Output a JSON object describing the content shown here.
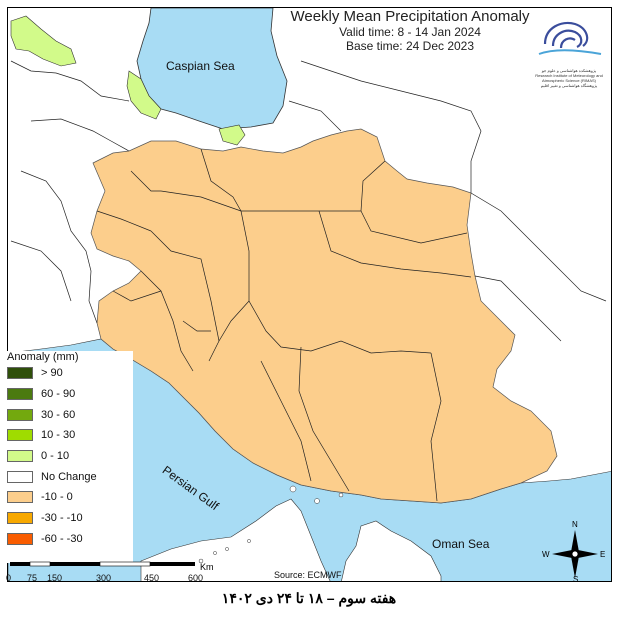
{
  "title": "Weekly Mean Precipitation Anomaly",
  "valid_time": "Valid time: 8 - 14 Jan 2024",
  "base_time": "Base time: 24 Dec 2023",
  "logo_text_fa": "پژوهشکده هواشناسی و علوم جو",
  "logo_text_en": "Research Institute of Meteorology and Atmospheric Science (RIMAS)",
  "logo_text_fa2": "پژوهشگاه هواشناسی و تغییر اقلیم",
  "water_labels": {
    "caspian": "Caspian Sea",
    "persian_gulf": "Persian Gulf",
    "oman": "Oman Sea"
  },
  "legend": {
    "title": "Anomaly (mm)",
    "items": [
      {
        "label": "> 90",
        "color": "#2f4f0a"
      },
      {
        "label": "60 - 90",
        "color": "#4b7a0f"
      },
      {
        "label": "30 - 60",
        "color": "#73a90e"
      },
      {
        "label": "10 - 30",
        "color": "#9fdc00"
      },
      {
        "label": "0 - 10",
        "color": "#d2fa8a"
      },
      {
        "label": "No Change",
        "color": "#ffffff"
      },
      {
        "label": "-10 - 0",
        "color": "#fcce8c"
      },
      {
        "label": "-30 - -10",
        "color": "#f7a800"
      },
      {
        "label": "-60 - -30",
        "color": "#f95c00"
      }
    ]
  },
  "scale": {
    "ticks": [
      "0",
      "75",
      "150",
      "300",
      "450",
      "600"
    ],
    "unit": "Km"
  },
  "compass": {
    "n": "N",
    "s": "S",
    "e": "E",
    "w": "W"
  },
  "source": "Source: ECMWF",
  "caption": "هفته سوم – ۱۸ تا ۲۴ دی ۱۴۰۲",
  "colors": {
    "water": "#a8dcf4",
    "anomaly_neg": "#fcce8c",
    "anomaly_pos": "#d2fa8a",
    "land": "#ffffff"
  }
}
